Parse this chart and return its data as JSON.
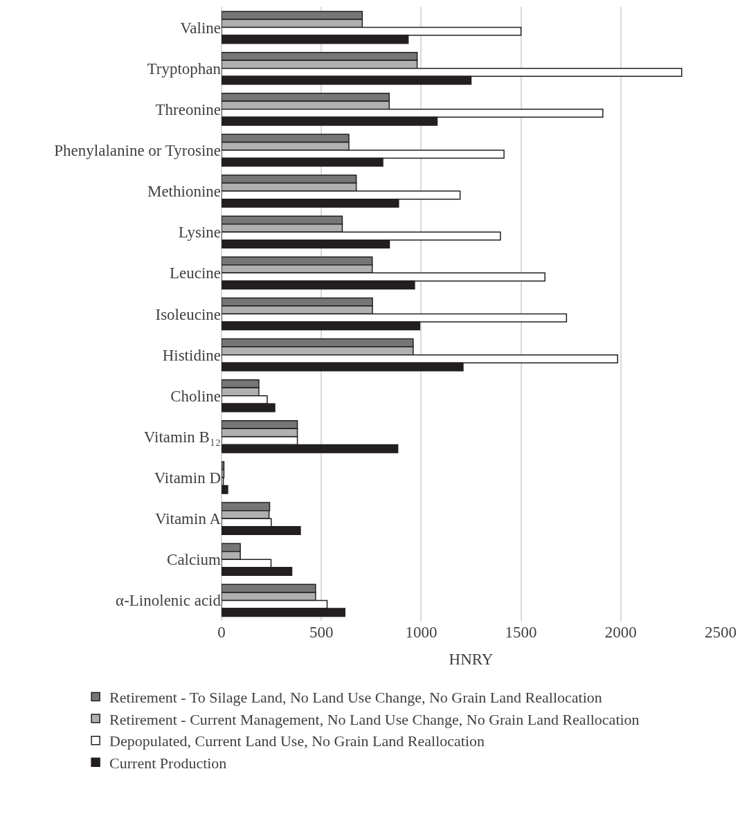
{
  "chart_data": {
    "type": "bar",
    "orientation": "horizontal",
    "xlabel": "HNRY",
    "categories": [
      "Valine",
      "Tryptophan",
      "Threonine",
      "Phenylalanine or Tyrosine",
      "Methionine",
      "Lysine",
      "Leucine",
      "Isoleucine",
      "Histidine",
      "Choline",
      "Vitamin B₁₂",
      "Vitamin D",
      "Vitamin A",
      "Calcium",
      "α-Linolenic acid"
    ],
    "series": [
      {
        "name": "Retirement - To Silage Land, No Land Use Change, No Grain Land Reallocation",
        "color": "#767676",
        "values": [
          705,
          980,
          840,
          638,
          675,
          605,
          755,
          756,
          960,
          187,
          380,
          12,
          241,
          94,
          471
        ]
      },
      {
        "name": "Retirement - Current Management, No Land Use Change, No Grain Land Reallocation",
        "color": "#b0b0b0",
        "values": [
          705,
          980,
          840,
          638,
          675,
          605,
          755,
          756,
          960,
          187,
          380,
          12,
          238,
          94,
          471
        ]
      },
      {
        "name": "Depopulated, Current Land Use, No Grain Land Reallocation",
        "color": "#ffffff",
        "values": [
          1500,
          2305,
          1910,
          1415,
          1195,
          1397,
          1620,
          1728,
          1984,
          229,
          380,
          9,
          249,
          248,
          529
        ]
      },
      {
        "name": "Current Production",
        "color": "#231f20",
        "values": [
          935,
          1250,
          1080,
          808,
          887,
          841,
          967,
          993,
          1210,
          267,
          883,
          31,
          395,
          352,
          618
        ]
      }
    ],
    "xlim": [
      0,
      2500
    ],
    "xticks": [
      0,
      500,
      1000,
      1500,
      2000,
      2500
    ],
    "grid": "x",
    "legend": "bottom"
  }
}
